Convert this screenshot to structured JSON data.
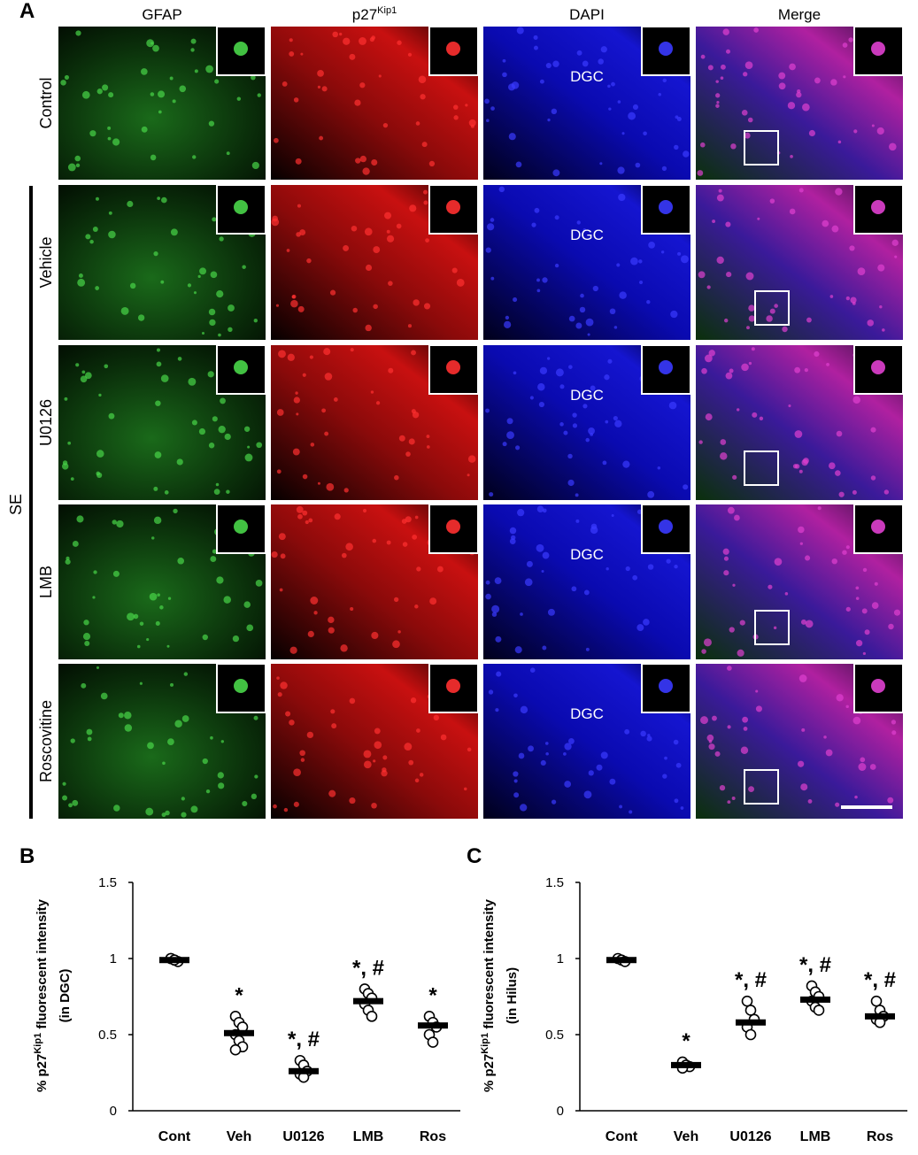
{
  "figure": {
    "panel_a": "A",
    "columns": [
      "GFAP",
      "p27",
      "Kip1",
      "DAPI",
      "Merge"
    ],
    "rows": [
      "Control",
      "Vehicle",
      "U0126",
      "LMB",
      "Roscovitine"
    ],
    "group": "SE",
    "region": "DGC"
  },
  "chart_data": [
    {
      "type": "dotplot",
      "panel": "B",
      "ylabel": [
        "% p27",
        "Kip1",
        " fluorescent intensity",
        "(in DGC)"
      ],
      "categories": [
        "Cont",
        "Veh",
        "U0126",
        "LMB",
        "Ros"
      ],
      "values": [
        0.99,
        0.51,
        0.26,
        0.72,
        0.56
      ],
      "points": [
        [
          1.0,
          0.99,
          0.98,
          1.0,
          0.99
        ],
        [
          0.62,
          0.58,
          0.55,
          0.5,
          0.46,
          0.42,
          0.4
        ],
        [
          0.33,
          0.3,
          0.26,
          0.24,
          0.22
        ],
        [
          0.8,
          0.77,
          0.74,
          0.7,
          0.66,
          0.62
        ],
        [
          0.62,
          0.58,
          0.55,
          0.5,
          0.45
        ]
      ],
      "annotations": [
        null,
        "*",
        "*, #",
        "*, #",
        "*"
      ],
      "ylim": [
        0,
        1.5
      ],
      "yticks": [
        0,
        0.5,
        1,
        1.5
      ],
      "color": "#000000"
    },
    {
      "type": "dotplot",
      "panel": "C",
      "ylabel": [
        "% p27",
        "Kip1",
        " fluorescent intensity",
        "(in Hilus)"
      ],
      "categories": [
        "Cont",
        "Veh",
        "U0126",
        "LMB",
        "Ros"
      ],
      "values": [
        0.99,
        0.3,
        0.58,
        0.73,
        0.62
      ],
      "points": [
        [
          1.0,
          0.99,
          0.98
        ],
        [
          0.32,
          0.3,
          0.29,
          0.28
        ],
        [
          0.72,
          0.66,
          0.6,
          0.55,
          0.5
        ],
        [
          0.82,
          0.78,
          0.75,
          0.72,
          0.68,
          0.66
        ],
        [
          0.72,
          0.66,
          0.62,
          0.6,
          0.58
        ]
      ],
      "annotations": [
        null,
        "*",
        "*, #",
        "*, #",
        "*, #"
      ],
      "ylim": [
        0,
        1.5
      ],
      "yticks": [
        0,
        0.5,
        1,
        1.5
      ],
      "color": "#000000"
    }
  ]
}
